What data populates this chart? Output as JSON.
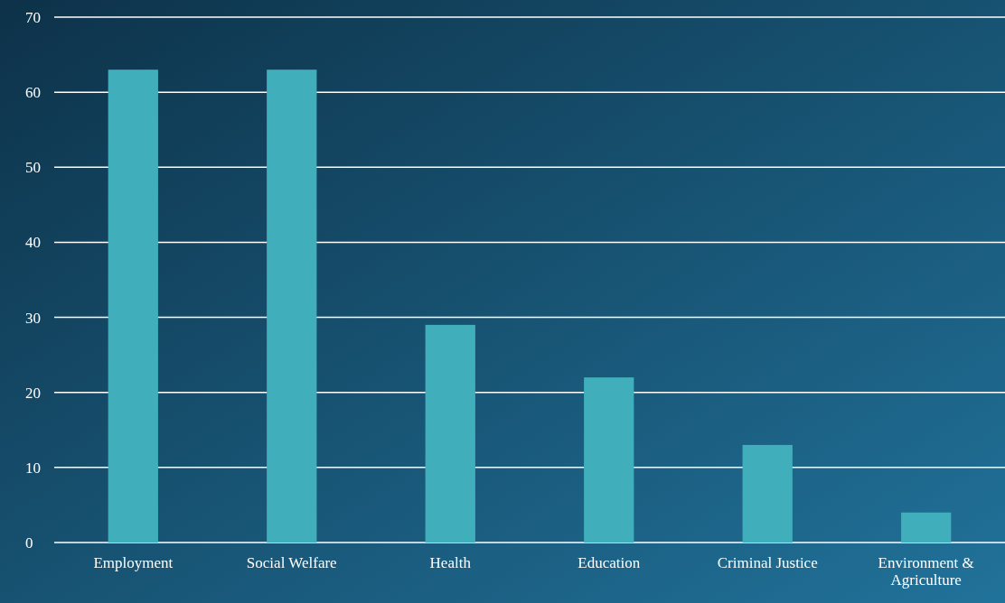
{
  "chart_data": {
    "type": "bar",
    "categories": [
      "Employment",
      "Social Welfare",
      "Health",
      "Education",
      "Criminal Justice",
      "Environment & Agriculture"
    ],
    "values": [
      63,
      63,
      29,
      22,
      13,
      4
    ],
    "color": "#41aebb",
    "ylim": [
      0,
      70
    ],
    "yticks": [
      0,
      10,
      20,
      30,
      40,
      50,
      60,
      70
    ],
    "grid": true
  }
}
